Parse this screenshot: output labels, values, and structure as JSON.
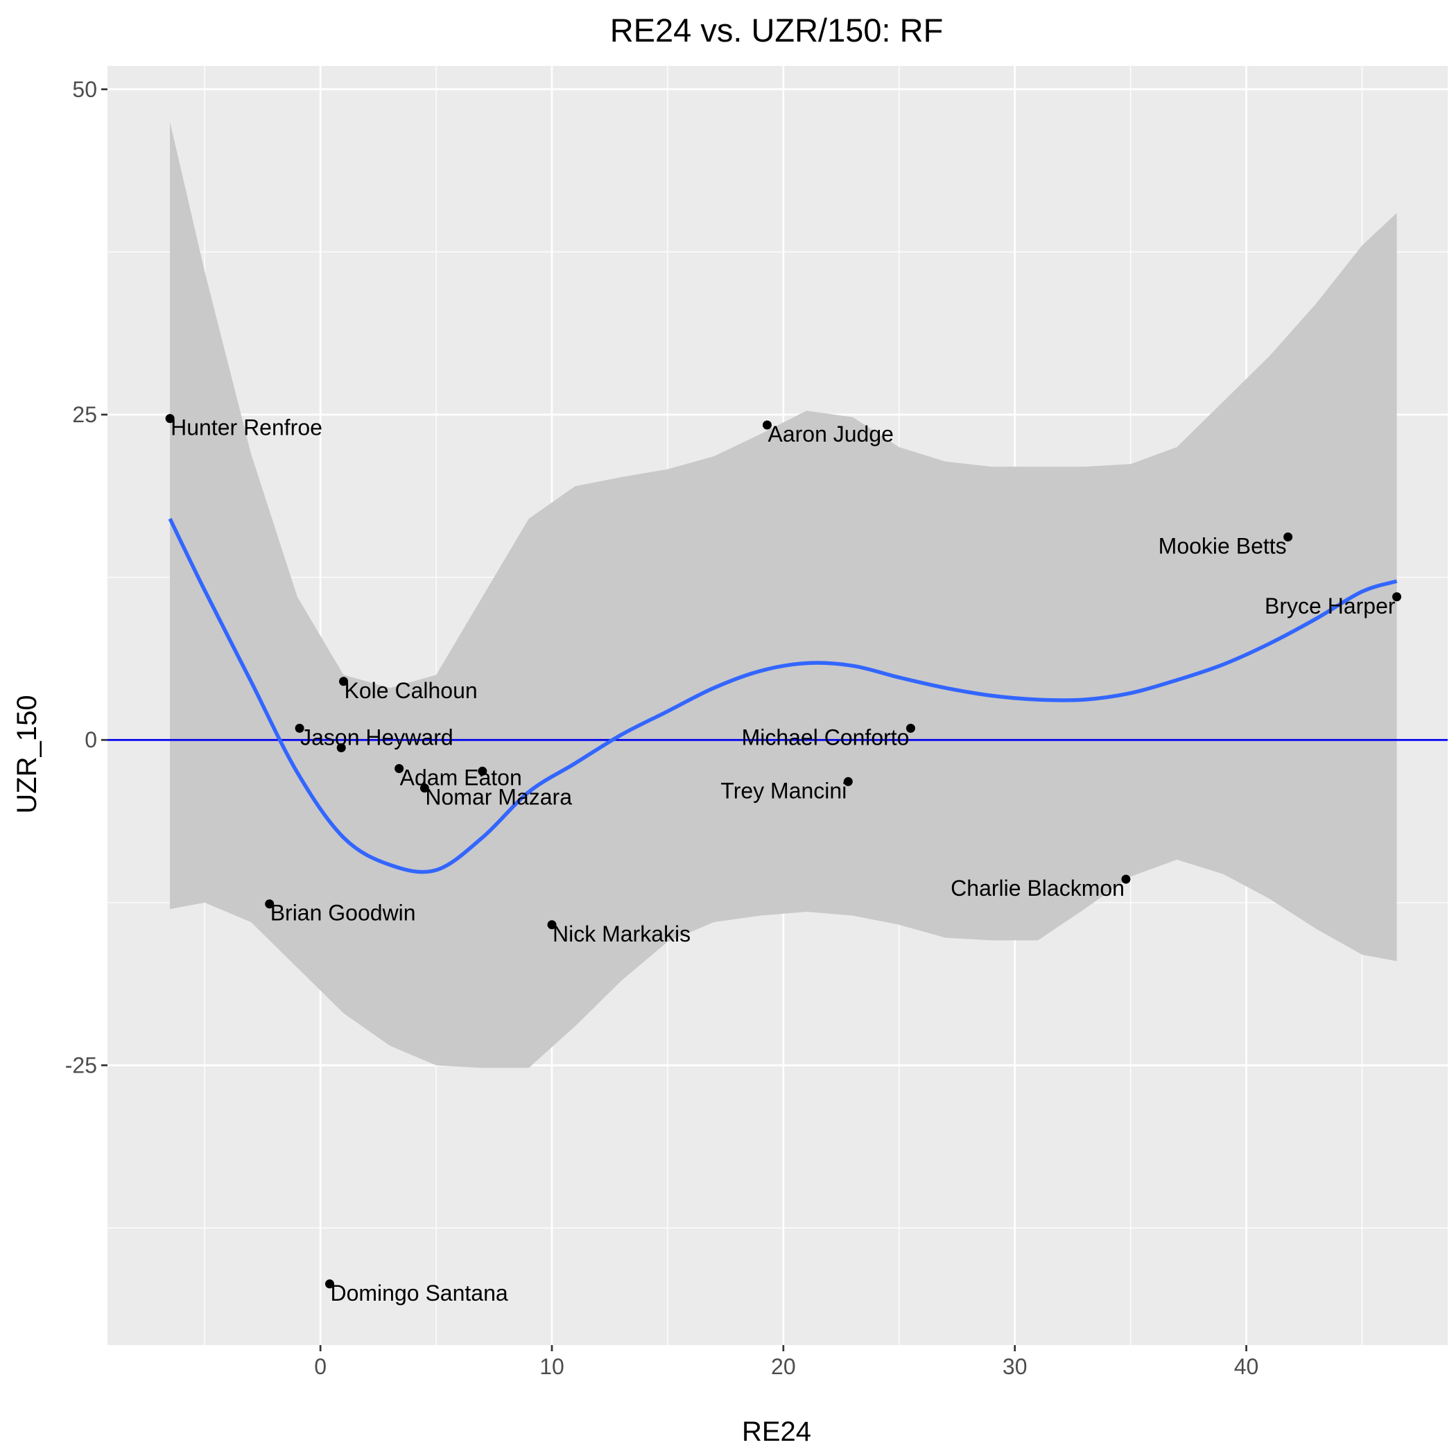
{
  "chart_data": {
    "type": "scatter",
    "title": "RE24 vs. UZR/150: RF",
    "xlabel": "RE24",
    "ylabel": "UZR_150",
    "xlim": [
      -9.2,
      48.7
    ],
    "ylim": [
      -46.5,
      51.8
    ],
    "x_ticks": [
      0,
      10,
      20,
      30,
      40
    ],
    "y_ticks": [
      -25,
      0,
      25,
      50
    ],
    "grid": true,
    "background": "#ebebeb",
    "reference_line": {
      "y": 0,
      "color": "#0000ee"
    },
    "points": [
      {
        "label": "Hunter Renfroe",
        "x": -6.5,
        "y": 24.7,
        "anchor": "start"
      },
      {
        "label": "Aaron Judge",
        "x": 19.3,
        "y": 24.2,
        "anchor": "start"
      },
      {
        "label": "Mookie Betts",
        "x": 41.8,
        "y": 15.6,
        "anchor": "end"
      },
      {
        "label": "Bryce Harper",
        "x": 46.5,
        "y": 11.0,
        "anchor": "end"
      },
      {
        "label": "Kole Calhoun",
        "x": 1.0,
        "y": 4.5,
        "anchor": "start"
      },
      {
        "label": "Jason Heyward",
        "x": -0.9,
        "y": 0.9,
        "anchor": "start"
      },
      {
        "label": "Michael Conforto",
        "x": 25.5,
        "y": 0.9,
        "anchor": "end"
      },
      {
        "label": "",
        "x": 0.9,
        "y": -0.6,
        "anchor": "start"
      },
      {
        "label": "Adam Eaton",
        "x": 3.4,
        "y": -2.2,
        "anchor": "start"
      },
      {
        "label": "",
        "x": 7.0,
        "y": -2.4,
        "anchor": "start"
      },
      {
        "label": "Nomar Mazara",
        "x": 4.5,
        "y": -3.7,
        "anchor": "start"
      },
      {
        "label": "Trey Mancini",
        "x": 22.8,
        "y": -3.2,
        "anchor": "end"
      },
      {
        "label": "Charlie Blackmon",
        "x": 34.8,
        "y": -10.7,
        "anchor": "end"
      },
      {
        "label": "Brian Goodwin",
        "x": -2.2,
        "y": -12.6,
        "anchor": "start"
      },
      {
        "label": "Nick Markakis",
        "x": 10.0,
        "y": -14.2,
        "anchor": "start"
      },
      {
        "label": "Domingo Santana",
        "x": 0.4,
        "y": -41.8,
        "anchor": "start"
      }
    ],
    "smooth": {
      "color": "#3366ff",
      "band_color": "#c9c9c9",
      "x": [
        -6.5,
        -5,
        -3,
        -1,
        1,
        3,
        5,
        7,
        9,
        11,
        13,
        15,
        17,
        19,
        21,
        23,
        25,
        27,
        29,
        31,
        33,
        35,
        37,
        39,
        41,
        43,
        45,
        46.5
      ],
      "y": [
        17.0,
        11.5,
        4.5,
        -2.5,
        -7.5,
        -9.6,
        -10.0,
        -7.5,
        -4.0,
        -1.8,
        0.4,
        2.2,
        4.0,
        5.3,
        5.9,
        5.7,
        4.8,
        4.0,
        3.4,
        3.1,
        3.1,
        3.6,
        4.6,
        5.8,
        7.4,
        9.3,
        11.4,
        12.2
      ],
      "upper": [
        47.5,
        36.0,
        22.0,
        11.0,
        5.0,
        4.0,
        5.0,
        11.0,
        17.0,
        19.5,
        20.2,
        20.8,
        21.8,
        23.5,
        25.3,
        24.8,
        22.5,
        21.4,
        21.0,
        21.0,
        21.0,
        21.2,
        22.5,
        26.0,
        29.5,
        33.5,
        38.0,
        40.5
      ],
      "lower": [
        -13.0,
        -12.5,
        -14.0,
        -17.5,
        -21.0,
        -23.5,
        -25.0,
        -25.2,
        -25.2,
        -22.0,
        -18.5,
        -15.5,
        -14.0,
        -13.5,
        -13.2,
        -13.5,
        -14.2,
        -15.2,
        -15.4,
        -15.4,
        -13.0,
        -10.5,
        -9.2,
        -10.3,
        -12.2,
        -14.5,
        -16.5,
        -17.0
      ]
    }
  }
}
